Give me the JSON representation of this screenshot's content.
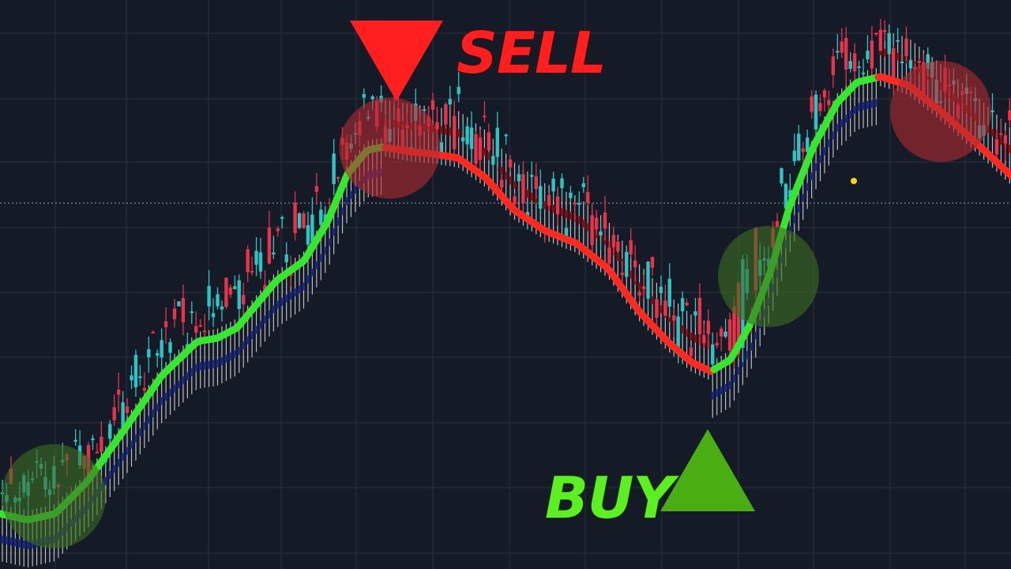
{
  "chart_data": {
    "type": "candlestick",
    "grid": true,
    "colors": {
      "background": "#141a26",
      "grid": "#283142",
      "bull_candle": "#2ec4c4",
      "bear_candle": "#e8334a",
      "trend_up": "#35e82e",
      "trend_down": "#ff2a1f",
      "band_up": "#1a2a8c",
      "band_down": "#8a1010",
      "band_ticks": "#f2f2f2",
      "sell_marker": "#ff1f1f",
      "buy_marker": "#4aae12",
      "buy_text": "#5cf023",
      "sell_highlight": "#b02a30",
      "buy_highlight": "#3c6e22"
    },
    "signals": [
      {
        "type": "sell",
        "label": "SELL",
        "bar": 90
      },
      {
        "type": "buy",
        "label": "BUY",
        "bar": 178
      },
      {
        "type": "sell",
        "label": "",
        "bar": 218
      }
    ]
  }
}
